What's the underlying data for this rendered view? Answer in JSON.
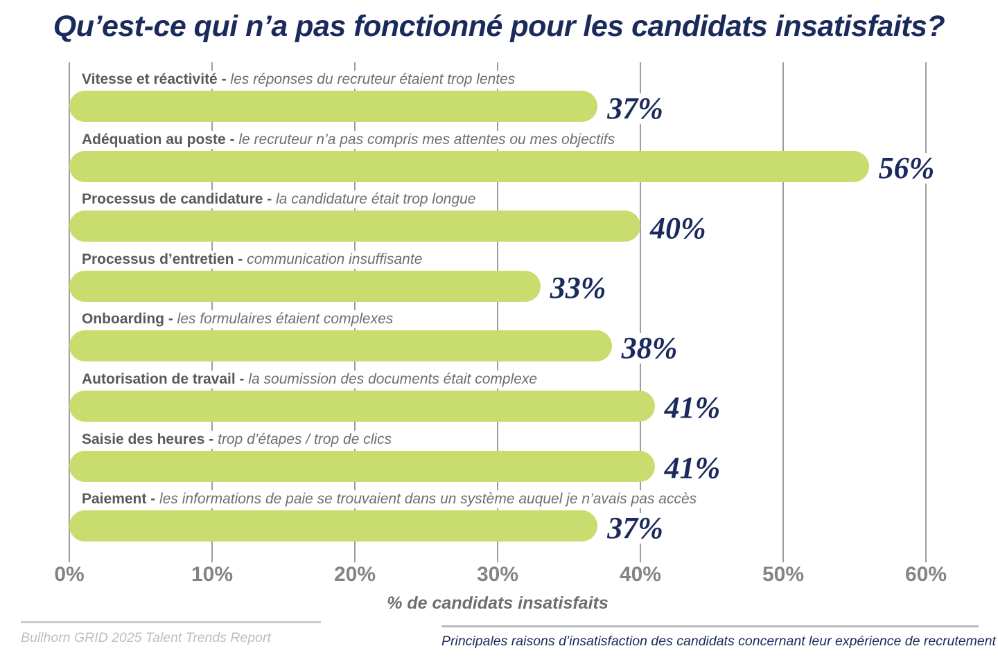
{
  "title": "Qu’est-ce qui n’a pas fonctionné pour les candidats insatisfaits?",
  "colors": {
    "navy": "#1b2a5c",
    "bar_green": "#c9dd6e",
    "grid_gray": "#9b9da0",
    "label_bold_gray": "#58595b",
    "label_italic_gray": "#6d6e71",
    "tick_gray": "#828487",
    "footer_light_gray": "#bcbec0"
  },
  "chart_data": {
    "type": "bar",
    "orientation": "horizontal",
    "title": "Qu’est-ce qui n’a pas fonctionné pour les candidats insatisfaits?",
    "xlabel": "% de candidats insatisfaits",
    "xlim": [
      0,
      60
    ],
    "x_ticks": [
      "0%",
      "10%",
      "20%",
      "30%",
      "40%",
      "50%",
      "60%"
    ],
    "grid": true,
    "bar_color": "#c9dd6e",
    "value_color": "#1b2a5c",
    "bars": [
      {
        "label": "Vitesse et réactivité -",
        "description": "les réponses du recruteur étaient trop lentes",
        "value": 37,
        "value_label": "37%"
      },
      {
        "label": "Adéquation au poste -",
        "description": "le recruteur n’a pas compris mes attentes ou mes objectifs",
        "value": 56,
        "value_label": "56%"
      },
      {
        "label": "Processus de candidature -",
        "description": "la candidature était trop longue",
        "value": 40,
        "value_label": "40%"
      },
      {
        "label": "Processus d’entretien -",
        "description": "communication insuffisante",
        "value": 33,
        "value_label": "33%"
      },
      {
        "label": "Onboarding -",
        "description": "les formulaires étaient complexes",
        "value": 38,
        "value_label": "38%"
      },
      {
        "label": "Autorisation de travail -",
        "description": "la soumission des documents était complexe",
        "value": 41,
        "value_label": "41%"
      },
      {
        "label": "Saisie des heures -",
        "description": "trop d’étapes / trop de clics",
        "value": 41,
        "value_label": "41%"
      },
      {
        "label": "Paiement -",
        "description": "les informations de paie se trouvaient dans un système auquel je n’avais pas accès",
        "value": 37,
        "value_label": "37%"
      }
    ]
  },
  "footer": {
    "source": "Bullhorn GRID 2025 Talent Trends Report",
    "caption": "Principales raisons d’insatisfaction des candidats concernant leur expérience de recrutement"
  }
}
